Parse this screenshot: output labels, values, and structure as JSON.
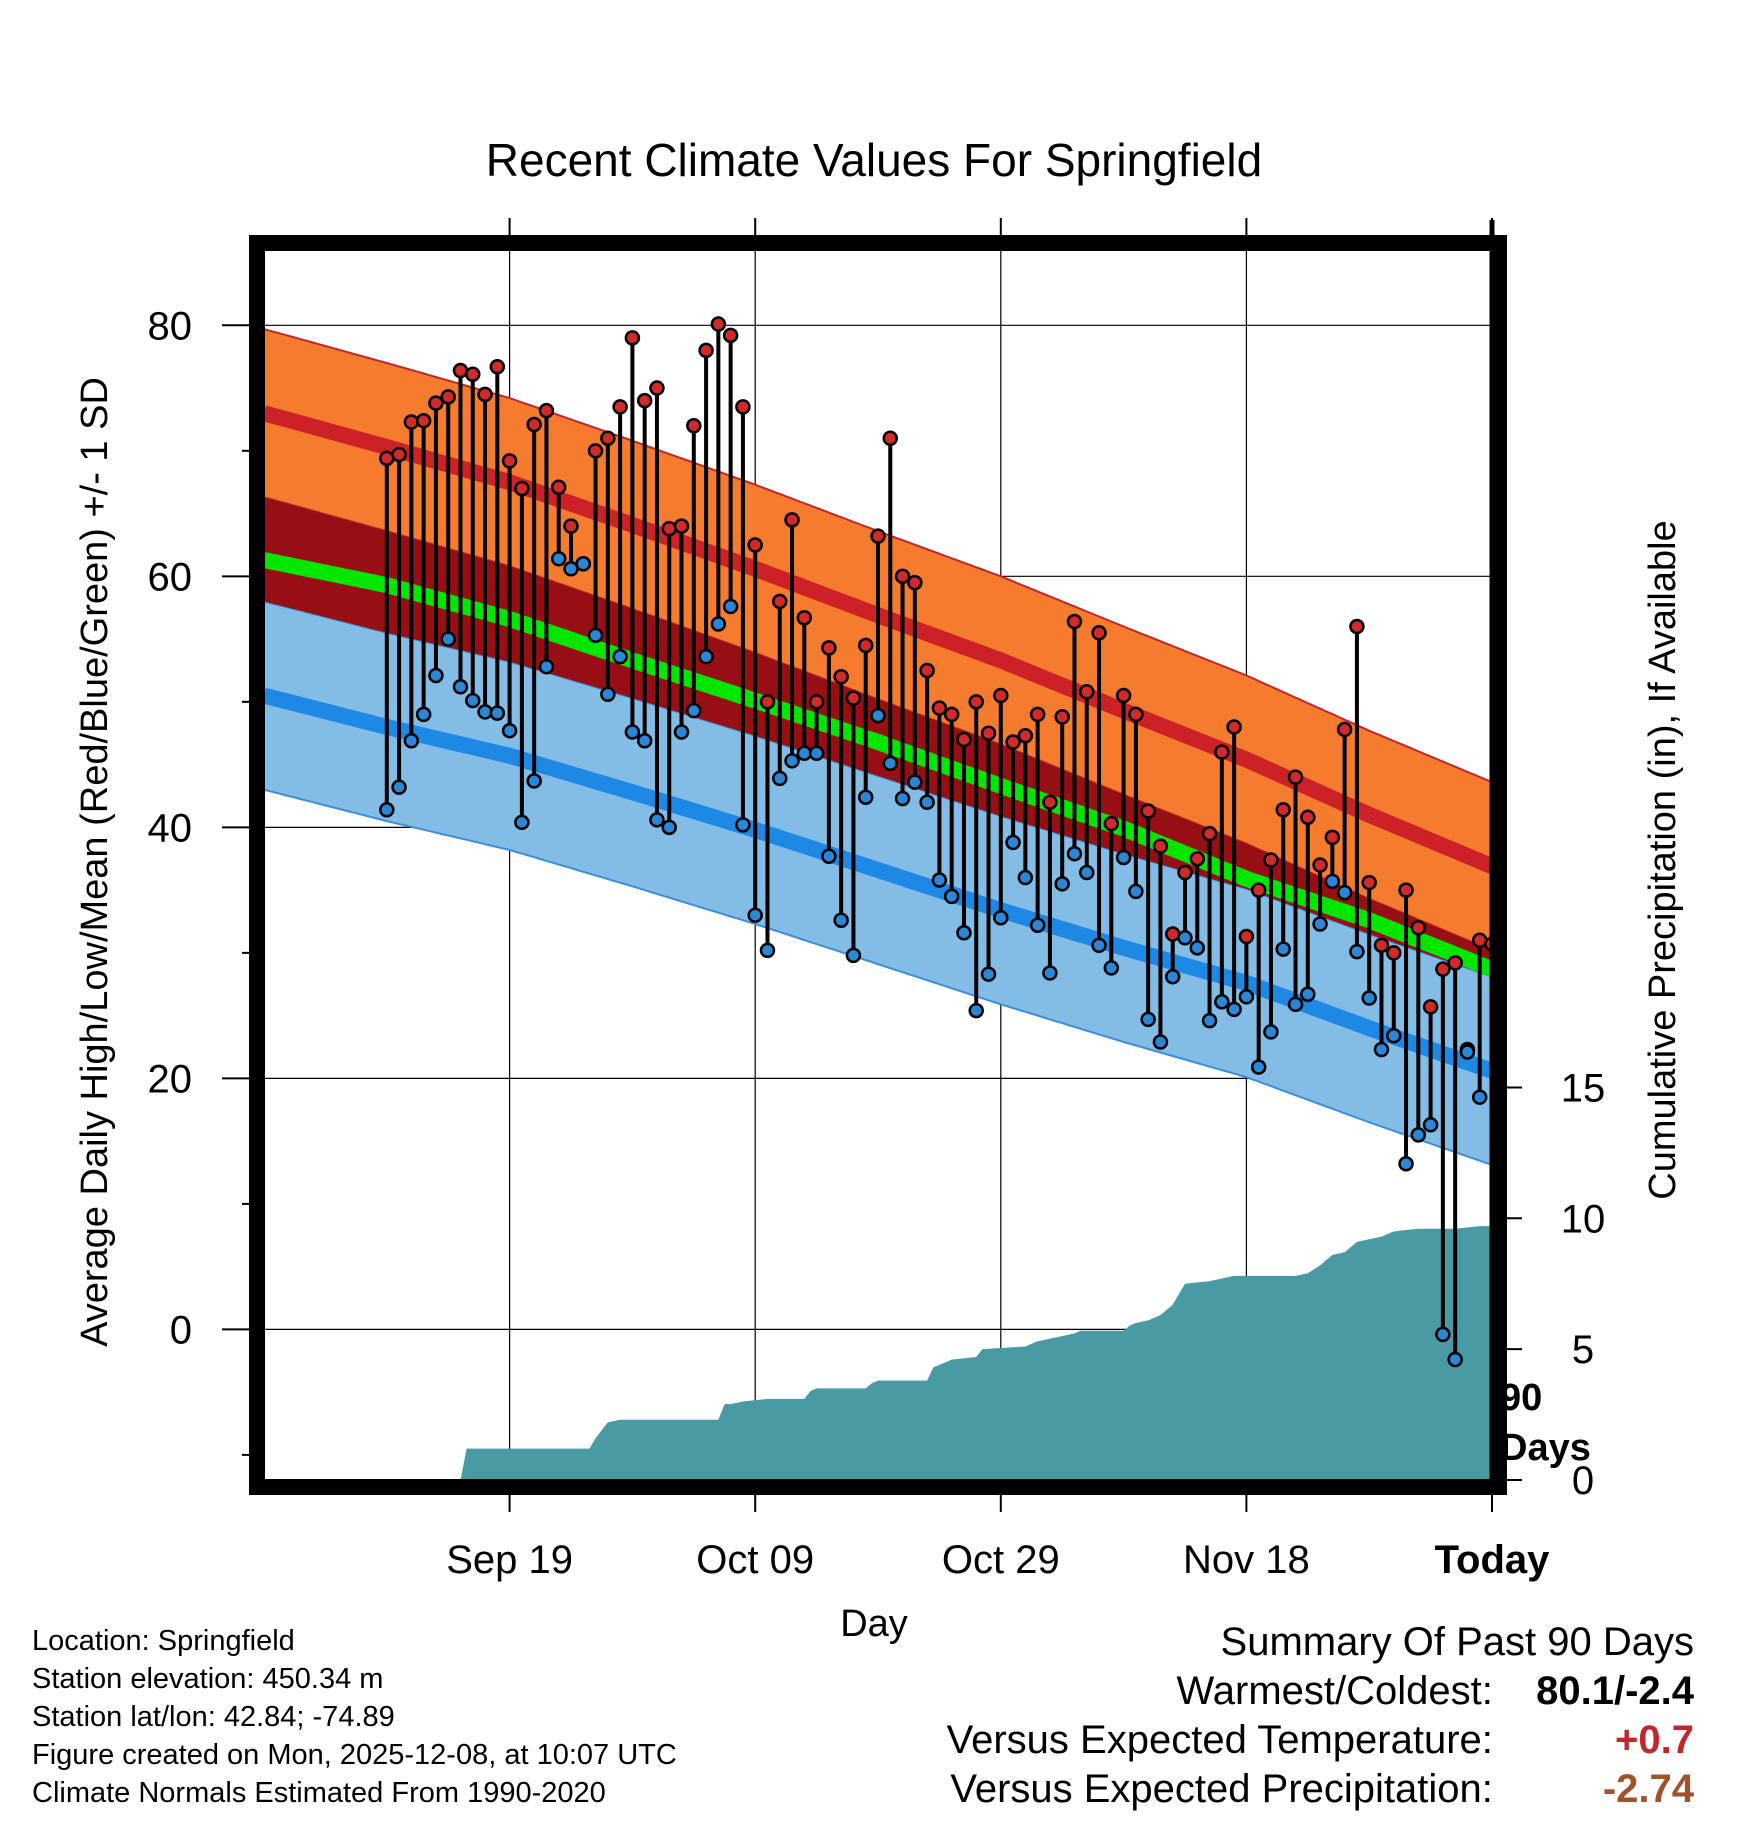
{
  "chart_data": {
    "type": "line",
    "title": "Recent Climate Values For Springfield",
    "xlabel": "Day",
    "ylabel": "Average Daily High/Low/Mean (Red/Blue/Green) +/- 1 SD",
    "y2label": "Cumulative Precipitation (in), If Available",
    "xlim": [
      -10,
      90
    ],
    "ylim": [
      -12,
      86
    ],
    "y2lim": [
      0,
      47
    ],
    "x_tick_positions": [
      10,
      30,
      50,
      70,
      90
    ],
    "x_tick_labels": [
      "Sep 19",
      "Oct 09",
      "Oct 29",
      "Nov 18",
      "Today"
    ],
    "y_ticks": [
      0,
      20,
      40,
      60,
      80
    ],
    "y_ticks_labels": [
      "0",
      "20",
      "40",
      "60",
      "80"
    ],
    "y2_ticks": [
      0,
      5,
      10,
      15
    ],
    "y2_ticks_labels": [
      "0",
      "5",
      "10",
      "15"
    ],
    "today_x": 90,
    "today_annotation": [
      "90",
      "Days"
    ],
    "normal_high": {
      "x": [
        -10,
        0,
        10,
        20,
        30,
        40,
        50,
        60,
        70,
        80,
        90,
        100
      ],
      "mean": [
        73,
        70.3,
        67.5,
        64.1,
        60.6,
        56.9,
        53.3,
        49.3,
        45.4,
        41,
        36.9,
        33.1
      ],
      "sd": 6.7
    },
    "normal_low": {
      "x": [
        -10,
        0,
        10,
        20,
        30,
        40,
        50,
        60,
        70,
        80,
        90,
        100
      ],
      "mean": [
        50.5,
        48,
        45.7,
        42.8,
        39.8,
        36.6,
        33.4,
        30.4,
        27.6,
        24,
        20.6,
        17.4
      ],
      "sd": 7.5
    },
    "normal_mean": {
      "x": [
        -10,
        0,
        10,
        20,
        30,
        40,
        50,
        60,
        70,
        80,
        90,
        100
      ],
      "values": [
        61.3,
        59.3,
        56.6,
        53.3,
        50.1,
        46.8,
        43.3,
        39.9,
        35.9,
        32.6,
        28.7,
        25.3
      ]
    },
    "series": [
      {
        "name": "Daily High",
        "values": [
          69.4,
          69.7,
          72.3,
          72.4,
          73.8,
          74.3,
          76.4,
          76.1,
          74.5,
          76.7,
          69.2,
          67,
          72.1,
          73.2,
          67.1,
          64,
          61,
          70,
          71,
          73.5,
          79,
          74,
          75,
          63.8,
          64,
          72,
          78,
          80.1,
          79.2,
          73.5,
          62.5,
          50,
          58,
          64.5,
          56.7,
          50,
          54.3,
          52,
          50.3,
          54.5,
          63.2,
          71,
          60,
          59.5,
          52.5,
          49.5,
          49,
          47,
          50,
          47.5,
          50.5,
          46.8,
          47.3,
          49,
          42,
          48.8,
          56.4,
          50.8,
          55.5,
          40.3,
          50.5,
          49,
          41.3,
          38.5,
          31.5,
          36.4,
          37.5,
          39.5,
          46,
          48,
          31.3,
          35,
          37.4,
          41.4,
          44,
          40.8,
          37,
          39.2,
          47.8,
          56,
          35.6,
          30.6,
          30,
          35,
          32,
          25.7,
          28.7,
          29.2,
          22.3,
          31,
          30.7
        ]
      },
      {
        "name": "Daily Low",
        "values": [
          41.4,
          43.2,
          46.9,
          49,
          52.1,
          55,
          51.2,
          50.1,
          49.2,
          49.1,
          47.7,
          40.4,
          43.7,
          52.8,
          61.4,
          60.6,
          61,
          55.3,
          50.6,
          53.6,
          47.6,
          46.9,
          40.6,
          40,
          47.6,
          49.3,
          53.6,
          56.2,
          57.6,
          40.2,
          33,
          30.2,
          43.9,
          45.3,
          45.9,
          45.9,
          37.7,
          32.6,
          29.8,
          42.4,
          48.9,
          45.1,
          42.3,
          43.6,
          42,
          35.8,
          34.5,
          31.6,
          25.4,
          28.3,
          32.8,
          38.8,
          36,
          32.2,
          28.4,
          35.5,
          37.9,
          36.4,
          30.6,
          28.8,
          37.6,
          34.9,
          24.7,
          22.9,
          28.1,
          31.2,
          30.4,
          24.6,
          26.1,
          25.5,
          26.5,
          20.9,
          23.7,
          30.3,
          25.9,
          26.7,
          32.3,
          35.7,
          34.8,
          30.1,
          26.4,
          22.3,
          23.4,
          13.2,
          15.5,
          16.3,
          -0.4,
          -2.4,
          22.1,
          18.5
        ]
      },
      {
        "name": "Cumulative Precipitation",
        "x": [
          6,
          6.5,
          16.5,
          17,
          18,
          19,
          27,
          27.5,
          28,
          29,
          31,
          34,
          34.5,
          35,
          39,
          39.5,
          40,
          44,
          44.5,
          46,
          48,
          48.5,
          52,
          53,
          54,
          56,
          56.5,
          60,
          60.5,
          61,
          62,
          63,
          64,
          65,
          67,
          68,
          69,
          70,
          74,
          75,
          76,
          77,
          78,
          79,
          81,
          82,
          84,
          85,
          87,
          89,
          90,
          100
        ],
        "values": [
          0,
          1.2,
          1.2,
          1.6,
          2.2,
          2.3,
          2.3,
          2.9,
          2.9,
          3.0,
          3.1,
          3.1,
          3.4,
          3.5,
          3.5,
          3.7,
          3.8,
          3.8,
          4.3,
          4.6,
          4.7,
          5.0,
          5.1,
          5.3,
          5.4,
          5.6,
          5.7,
          5.7,
          5.9,
          6.0,
          6.1,
          6.3,
          6.7,
          7.5,
          7.6,
          7.7,
          7.8,
          7.8,
          7.8,
          7.9,
          8.2,
          8.6,
          8.7,
          9.1,
          9.3,
          9.5,
          9.6,
          9.6,
          9.6,
          9.7,
          9.7,
          9.7
        ]
      }
    ]
  },
  "footer": {
    "location": "Location: Springfield",
    "elevation": "Station elevation: 450.34 m",
    "latlon": "Station lat/lon: 42.84; -74.89",
    "created": "Figure created on Mon, 2025-12-08, at 10:07 UTC",
    "normals": "Climate Normals Estimated From 1990-2020"
  },
  "summary": {
    "title": "Summary Of Past 90 Days",
    "warmest_coldest_label": "Warmest/Coldest:",
    "warmest_coldest_value": "80.1/-2.4",
    "temp_label": "Versus Expected Temperature:",
    "temp_value": "+0.7",
    "precip_label": "Versus Expected Precipitation:",
    "precip_value": "-2.74",
    "temp_color": "#c0282d",
    "precip_color": "#a0522d"
  },
  "colors": {
    "high_band": "#f57b2f",
    "high_line": "#cc2227",
    "high_border": "#c0282d",
    "low_band": "#83bde6",
    "low_line": "#1e88e5",
    "low_border": "#3a8fd8",
    "mean_line": "#00e600",
    "overlap": "#970f14",
    "precip_fill": "#4a9aa3",
    "high_marker": "#d12a2a",
    "low_marker": "#2b87d6"
  }
}
